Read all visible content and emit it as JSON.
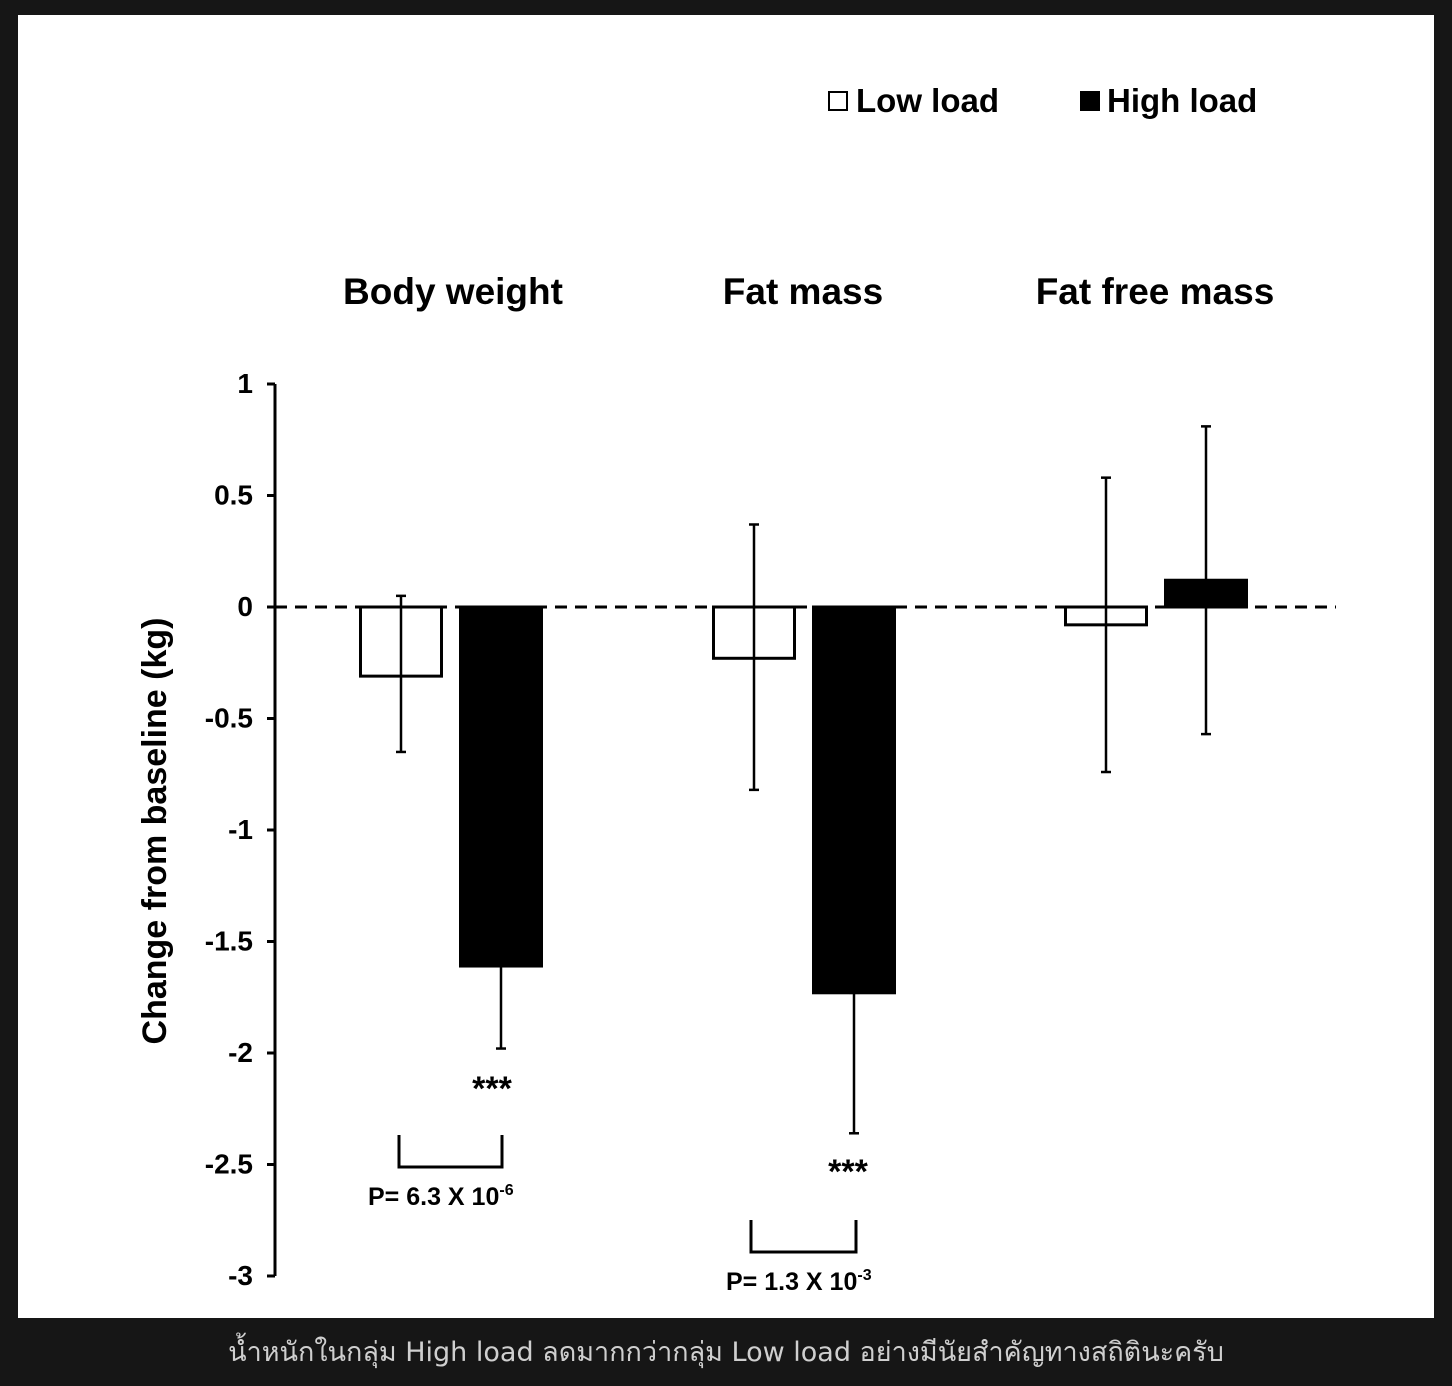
{
  "caption": "น้ำหนักในกลุ่ม High load ลดมากกว่ากลุ่ม Low load อย่างมีนัยสำคัญทางสถิตินะครับ",
  "chart_data": {
    "type": "bar",
    "categories": [
      "Body weight",
      "Fat mass",
      "Fat free mass"
    ],
    "series": [
      {
        "name": "Low load",
        "color": "#ffffff",
        "values": [
          -0.31,
          -0.23,
          -0.08
        ],
        "error_upper": [
          0.05,
          0.37,
          0.58
        ],
        "error_lower": [
          -0.65,
          -0.82,
          -0.74
        ]
      },
      {
        "name": "High load",
        "color": "#000000",
        "values": [
          -1.61,
          -1.73,
          0.12
        ],
        "error_upper": [
          -1.61,
          -1.73,
          0.81
        ],
        "error_lower": [
          -1.98,
          -2.36,
          -0.57
        ]
      }
    ],
    "ylabel": "Change from baseline (kg)",
    "ylim": [
      -3,
      1
    ],
    "yticks": [
      "1",
      "0.5",
      "0",
      "-0.5",
      "-1",
      "-1.5",
      "-2",
      "-2.5",
      "-3"
    ],
    "zero_line": "dashed",
    "grid": false,
    "legend": "top-right",
    "annotations": [
      {
        "category": "Body weight",
        "stars": "***",
        "p_text": "P= 6.3 X 10",
        "p_exp": "-6"
      },
      {
        "category": "Fat mass",
        "stars": "***",
        "p_text": "P= 1.3 X 10",
        "p_exp": "-3"
      }
    ]
  }
}
